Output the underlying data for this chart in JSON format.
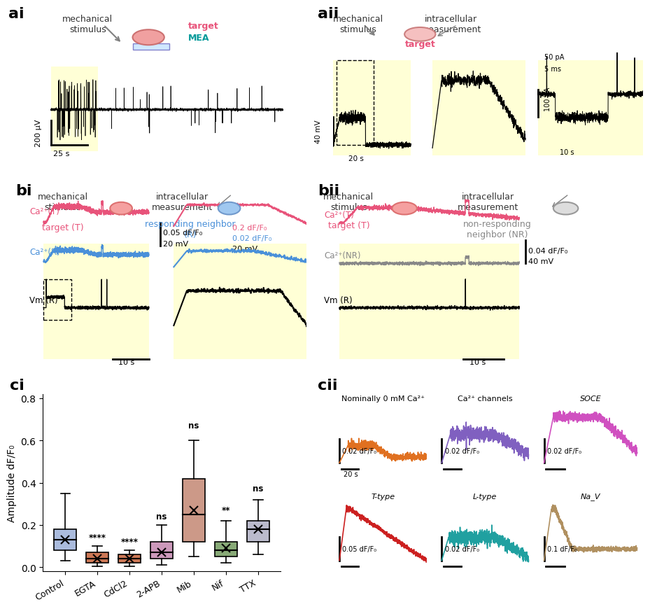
{
  "fig_width": 9.43,
  "fig_height": 8.45,
  "bg_color": "#ffffff",
  "yellow_bg": "#ffffcc",
  "panel_labels": [
    "ai",
    "aii",
    "bi",
    "bii",
    "ci",
    "cii"
  ],
  "colors": {
    "pink": "#e8537a",
    "blue": "#4a90d9",
    "magenta": "#e8537a",
    "dark": "#1a1a1a",
    "gray": "#888888",
    "orange": "#e07020",
    "purple": "#8060c0",
    "teal": "#20a080",
    "red": "#cc2020",
    "cyan": "#20a0a0",
    "tan": "#b09060",
    "green": "#40a040",
    "light_gray": "#aaaaaa"
  },
  "boxplot_data": {
    "groups": [
      "Control",
      "EGTA",
      "CdCl2",
      "2-APB",
      "Mib",
      "Nif",
      "TTX"
    ],
    "colors": [
      "#aabbdd",
      "#cc7755",
      "#cc7755",
      "#cc99bb",
      "#cc9988",
      "#88aa77",
      "#bbbbcc"
    ],
    "medians": [
      0.13,
      0.04,
      0.04,
      0.07,
      0.25,
      0.08,
      0.18
    ],
    "q1": [
      0.08,
      0.02,
      0.02,
      0.04,
      0.12,
      0.05,
      0.12
    ],
    "q3": [
      0.18,
      0.07,
      0.06,
      0.12,
      0.42,
      0.12,
      0.22
    ],
    "whisker_low": [
      0.03,
      0.005,
      0.005,
      0.01,
      0.05,
      0.02,
      0.06
    ],
    "whisker_high": [
      0.35,
      0.1,
      0.08,
      0.2,
      0.6,
      0.22,
      0.32
    ],
    "means": [
      0.13,
      0.04,
      0.04,
      0.07,
      0.27,
      0.09,
      0.18
    ],
    "sig_labels": [
      "",
      "****",
      "****",
      "ns",
      "ns",
      "**",
      "ns"
    ]
  }
}
